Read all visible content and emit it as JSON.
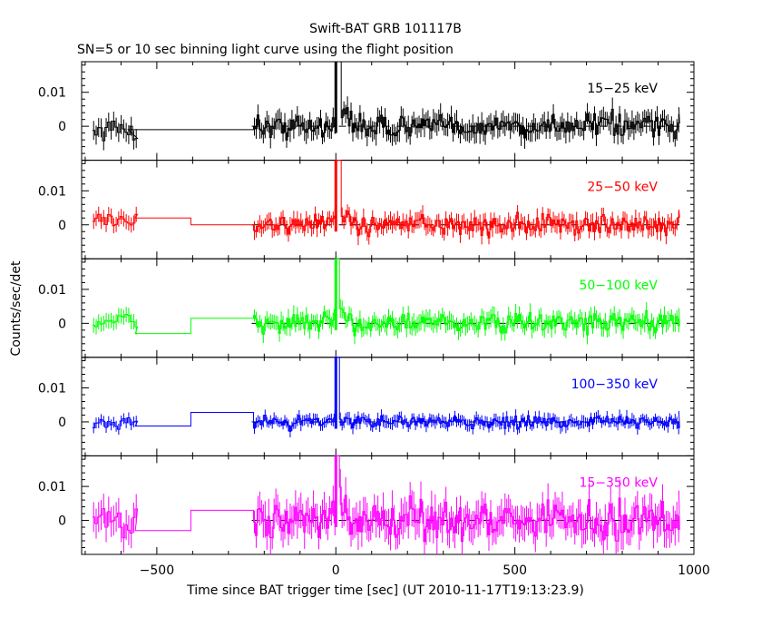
{
  "title": "Swift-BAT GRB 101117B",
  "subtitle": "SN=5 or 10 sec binning light curve using the flight position",
  "chart_data": {
    "type": "line",
    "title": "Swift-BAT GRB 101117B",
    "subtitle": "SN=5 or 10 sec binning light curve using the flight position",
    "xlabel": "Time since BAT trigger time [sec] (UT 2010-11-17T19:13:23.9)",
    "ylabel": "Counts/sec/det",
    "xlim": [
      -710,
      1000
    ],
    "ylim": [
      -0.01,
      0.019
    ],
    "x_ticks": [
      -500,
      0,
      500,
      1000
    ],
    "x_tick_labels": [
      "−500",
      "0",
      "500",
      "1000"
    ],
    "y_ticks": [
      0,
      0.01
    ],
    "y_tick_labels": [
      "0",
      "0.01"
    ],
    "series": [
      {
        "name": "15−25 keV",
        "color": "#000000",
        "pre_segments": [
          {
            "t": [
              -680,
              -580
            ],
            "level": -0.001
          },
          {
            "t": [
              -580,
              -230
            ],
            "level": -0.001
          }
        ],
        "noise": 0.0035,
        "peak": 0.019,
        "peak_width": 12,
        "tail": 0.004
      },
      {
        "name": "25−50 keV",
        "color": "#ff0000",
        "pre_segments": [
          {
            "t": [
              -680,
              -560
            ],
            "level": 0.0015
          },
          {
            "t": [
              -560,
              -405
            ],
            "level": 0.002
          },
          {
            "t": [
              -405,
              -240
            ],
            "level": 0.0
          },
          {
            "t": [
              -240,
              -230
            ],
            "level": 0.0
          }
        ],
        "noise": 0.0028,
        "peak": 0.019,
        "peak_width": 12,
        "tail": 0.004
      },
      {
        "name": "50−100 keV",
        "color": "#00ff00",
        "pre_segments": [
          {
            "t": [
              -680,
              -560
            ],
            "level": 0.0005
          },
          {
            "t": [
              -560,
              -405
            ],
            "level": -0.003
          },
          {
            "t": [
              -405,
              -240
            ],
            "level": 0.0015
          },
          {
            "t": [
              -240,
              -230
            ],
            "level": 0.0015
          }
        ],
        "noise": 0.0028,
        "peak": 0.019,
        "peak_width": 8,
        "tail": 0.002
      },
      {
        "name": "100−350 keV",
        "color": "#0000ff",
        "pre_segments": [
          {
            "t": [
              -680,
              -560
            ],
            "level": 0.0
          },
          {
            "t": [
              -560,
              -405
            ],
            "level": -0.0012
          },
          {
            "t": [
              -405,
              -240
            ],
            "level": 0.0028
          },
          {
            "t": [
              -240,
              -230
            ],
            "level": 0.0028
          }
        ],
        "noise": 0.002,
        "peak": 0.019,
        "peak_width": 6,
        "tail": 0.002
      },
      {
        "name": "15−350 keV",
        "color": "#ff00ff",
        "pre_segments": [
          {
            "t": [
              -680,
              -560
            ],
            "level": 0.0
          },
          {
            "t": [
              -560,
              -405
            ],
            "level": -0.003
          },
          {
            "t": [
              -405,
              -240
            ],
            "level": 0.003
          },
          {
            "t": [
              -240,
              -230
            ],
            "level": 0.003
          }
        ],
        "noise": 0.0055,
        "peak": 0.019,
        "peak_width": 10,
        "tail": 0.006
      }
    ]
  }
}
